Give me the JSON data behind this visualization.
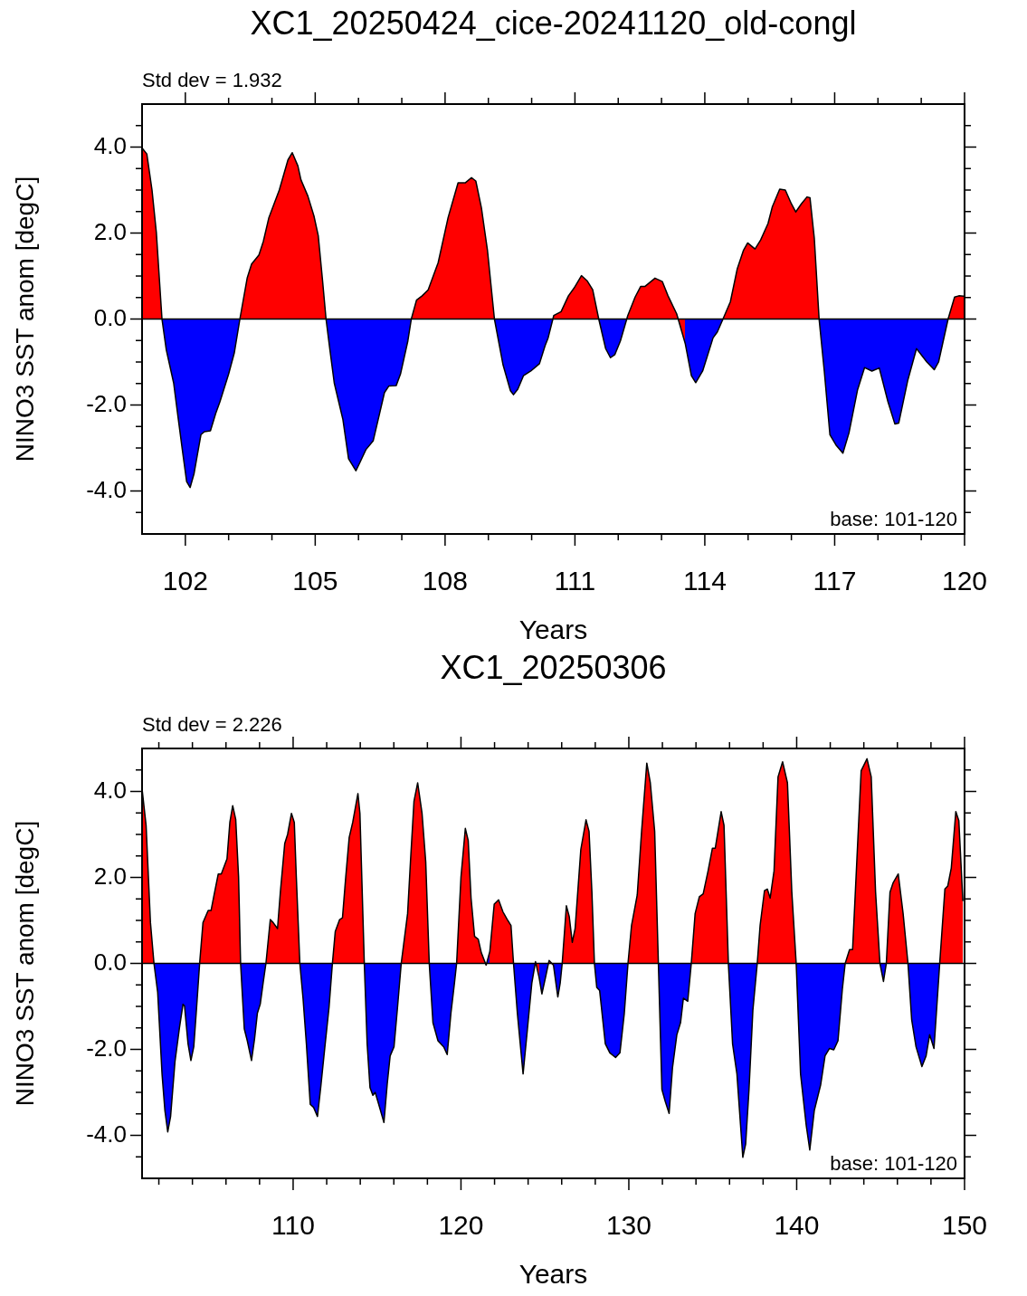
{
  "chart_data": [
    {
      "type": "area",
      "title": "XC1_20250424_cice-20241120_old-congl",
      "xlabel": "Years",
      "ylabel": "NINO3 SST anom [degC]",
      "annotations": [
        "Std dev = 1.932",
        "base: 101-120"
      ],
      "xlim": [
        101,
        120
      ],
      "ylim": [
        -5,
        5
      ],
      "xticks": [
        {
          "value": 102,
          "label": "102"
        },
        {
          "value": 103,
          "label": null
        },
        {
          "value": 104,
          "label": null
        },
        {
          "value": 105,
          "label": "105"
        },
        {
          "value": 106,
          "label": null
        },
        {
          "value": 107,
          "label": null
        },
        {
          "value": 108,
          "label": "108"
        },
        {
          "value": 109,
          "label": null
        },
        {
          "value": 110,
          "label": null
        },
        {
          "value": 111,
          "label": "111"
        },
        {
          "value": 112,
          "label": null
        },
        {
          "value": 113,
          "label": null
        },
        {
          "value": 114,
          "label": "114"
        },
        {
          "value": 115,
          "label": null
        },
        {
          "value": 116,
          "label": null
        },
        {
          "value": 117,
          "label": "117"
        },
        {
          "value": 118,
          "label": null
        },
        {
          "value": 119,
          "label": null
        },
        {
          "value": 120,
          "label": "120"
        }
      ],
      "yticks": [
        {
          "value": -4.5,
          "label": null
        },
        {
          "value": -4,
          "label": "-4.0"
        },
        {
          "value": -3.5,
          "label": null
        },
        {
          "value": -3,
          "label": null
        },
        {
          "value": -2.5,
          "label": null
        },
        {
          "value": -2,
          "label": "-2.0"
        },
        {
          "value": -1.5,
          "label": null
        },
        {
          "value": -1,
          "label": null
        },
        {
          "value": -0.5,
          "label": null
        },
        {
          "value": 0,
          "label": "0.0"
        },
        {
          "value": 0.5,
          "label": null
        },
        {
          "value": 1,
          "label": null
        },
        {
          "value": 1.5,
          "label": null
        },
        {
          "value": 2,
          "label": "2.0"
        },
        {
          "value": 2.5,
          "label": null
        },
        {
          "value": 3,
          "label": null
        },
        {
          "value": 3.5,
          "label": null
        },
        {
          "value": 4,
          "label": "4.0"
        },
        {
          "value": 4.5,
          "label": null
        }
      ],
      "ref_lines": [
        {
          "axis": "y",
          "value": 0,
          "color": "#000000"
        }
      ],
      "x": [
        101,
        101.11,
        101.23,
        101.33,
        101.46,
        101.56,
        101.73,
        101.83,
        101.93,
        102.03,
        102.11,
        102.2,
        102.36,
        102.44,
        102.58,
        102.7,
        102.8,
        103,
        103.13,
        103.26,
        103.43,
        103.53,
        103.7,
        103.8,
        103.93,
        104.17,
        104.37,
        104.47,
        104.6,
        104.67,
        104.83,
        104.97,
        105.07,
        105.17,
        105.25,
        105.34,
        105.44,
        105.64,
        105.77,
        105.94,
        106.04,
        106.17,
        106.34,
        106.6,
        106.7,
        106.87,
        106.97,
        107.14,
        107.22,
        107.34,
        107.47,
        107.61,
        107.84,
        108.07,
        108.3,
        108.47,
        108.61,
        108.71,
        108.84,
        108.98,
        109.14,
        109.34,
        109.51,
        109.58,
        109.68,
        109.81,
        109.98,
        110.18,
        110.31,
        110.38,
        110.51,
        110.68,
        110.85,
        110.98,
        111.15,
        111.28,
        111.41,
        111.55,
        111.71,
        111.82,
        111.92,
        112.05,
        112.22,
        112.39,
        112.52,
        112.62,
        112.85,
        113.02,
        113.15,
        113.35,
        113.55,
        113.69,
        113.79,
        113.95,
        114.19,
        114.29,
        114.42,
        114.59,
        114.75,
        114.89,
        114.99,
        115.16,
        115.29,
        115.46,
        115.56,
        115.73,
        115.86,
        116,
        116.1,
        116.23,
        116.36,
        116.43,
        116.53,
        116.64,
        116.76,
        116.89,
        117.03,
        117.19,
        117.33,
        117.53,
        117.69,
        117.86,
        118.03,
        118.23,
        118.39,
        118.48,
        118.69,
        118.89,
        119.13,
        119.3,
        119.4,
        119.62,
        119.77,
        119.87,
        119.98
      ],
      "series": [
        {
          "color": "#000000",
          "colors": [
            "#ff0000",
            "#ff0000",
            "#ff0000",
            "#ff0000",
            "#0000ff",
            "#0000ff",
            "#0000ff",
            "#0000ff",
            "#0000ff",
            "#0000ff",
            "#0000ff",
            "#0000ff",
            "#0000ff",
            "#0000ff",
            "#0000ff",
            "#0000ff",
            "#0000ff",
            "#0000ff",
            "#0000ff",
            "#ff0000",
            "#ff0000",
            "#ff0000",
            "#ff0000",
            "#ff0000",
            "#ff0000",
            "#ff0000",
            "#ff0000",
            "#ff0000",
            "#ff0000",
            "#ff0000",
            "#ff0000",
            "#ff0000",
            "#ff0000",
            "#ff0000",
            "#0000ff",
            "#0000ff",
            "#0000ff",
            "#0000ff",
            "#0000ff",
            "#0000ff",
            "#0000ff",
            "#0000ff",
            "#0000ff",
            "#0000ff",
            "#0000ff",
            "#0000ff",
            "#0000ff",
            "#0000ff",
            "#ff0000",
            "#ff0000",
            "#ff0000",
            "#ff0000",
            "#ff0000",
            "#ff0000",
            "#ff0000",
            "#ff0000",
            "#ff0000",
            "#ff0000",
            "#ff0000",
            "#ff0000",
            "#0000ff",
            "#0000ff",
            "#0000ff",
            "#0000ff",
            "#0000ff",
            "#0000ff",
            "#0000ff",
            "#0000ff",
            "#0000ff",
            "#0000ff",
            "#ff0000",
            "#ff0000",
            "#ff0000",
            "#ff0000",
            "#ff0000",
            "#ff0000",
            "#ff0000",
            "#0000ff",
            "#0000ff",
            "#0000ff",
            "#0000ff",
            "#0000ff",
            "#ff0000",
            "#ff0000",
            "#ff0000",
            "#ff0000",
            "#ff0000",
            "#ff0000",
            "#ff0000",
            "#ff0000",
            "#0000ff",
            "#0000ff",
            "#0000ff",
            "#0000ff",
            "#0000ff",
            "#0000ff",
            "#ff0000",
            "#ff0000",
            "#ff0000",
            "#ff0000",
            "#ff0000",
            "#ff0000",
            "#ff0000",
            "#ff0000",
            "#ff0000",
            "#ff0000",
            "#ff0000",
            "#ff0000",
            "#ff0000",
            "#ff0000",
            "#ff0000",
            "#ff0000",
            "#ff0000",
            "#0000ff",
            "#0000ff",
            "#0000ff",
            "#0000ff",
            "#0000ff",
            "#0000ff",
            "#0000ff",
            "#0000ff",
            "#0000ff",
            "#0000ff",
            "#0000ff",
            "#0000ff",
            "#0000ff",
            "#0000ff",
            "#0000ff",
            "#0000ff",
            "#0000ff",
            "#0000ff",
            "#ff0000",
            "#ff0000",
            "#ff0000",
            "#ff0000"
          ],
          "values": [
            3.98,
            3.84,
            3.0,
            2.01,
            0,
            -0.72,
            -1.49,
            -2.27,
            -3.04,
            -3.78,
            -3.92,
            -3.6,
            -2.69,
            -2.62,
            -2.6,
            -2.2,
            -1.92,
            -1.28,
            -0.79,
            0,
            0.96,
            1.28,
            1.49,
            1.8,
            2.36,
            3.0,
            3.7,
            3.87,
            3.56,
            3.24,
            2.86,
            2.4,
            1.94,
            0.89,
            0,
            -0.72,
            -1.49,
            -2.34,
            -3.25,
            -3.53,
            -3.32,
            -3.04,
            -2.83,
            -1.71,
            -1.56,
            -1.55,
            -1.28,
            -0.51,
            0,
            0.44,
            0.54,
            0.68,
            1.31,
            2.36,
            3.17,
            3.17,
            3.29,
            3.21,
            2.58,
            1.59,
            0,
            -1.07,
            -1.67,
            -1.76,
            -1.63,
            -1.32,
            -1.21,
            -1.04,
            -0.62,
            -0.44,
            0.08,
            0.17,
            0.54,
            0.72,
            1.01,
            0.89,
            0.68,
            0,
            -0.69,
            -0.9,
            -0.83,
            -0.51,
            0.08,
            0.51,
            0.76,
            0.76,
            0.95,
            0.87,
            0.54,
            0.12,
            -0.58,
            -1.32,
            -1.48,
            -1.21,
            -0.44,
            -0.3,
            0,
            0.4,
            1.17,
            1.59,
            1.77,
            1.63,
            1.84,
            2.22,
            2.61,
            3.02,
            3.0,
            2.68,
            2.49,
            2.68,
            2.84,
            2.82,
            1.87,
            0,
            -1.21,
            -2.69,
            -2.93,
            -3.12,
            -2.65,
            -1.64,
            -1.13,
            -1.21,
            -1.14,
            -1.92,
            -2.44,
            -2.42,
            -1.42,
            -0.69,
            -1.0,
            -1.18,
            -1.0,
            0,
            0.51,
            0.54,
            0.53
          ]
        }
      ]
    },
    {
      "type": "area",
      "title": "XC1_20250306",
      "xlabel": "Years",
      "ylabel": "NINO3 SST anom [degC]",
      "annotations": [
        "Std dev = 2.226",
        "base: 101-120"
      ],
      "xlim": [
        101,
        150
      ],
      "ylim": [
        -5,
        5
      ],
      "xticks": [
        {
          "value": 102,
          "label": null
        },
        {
          "value": 104,
          "label": null
        },
        {
          "value": 106,
          "label": null
        },
        {
          "value": 108,
          "label": null
        },
        {
          "value": 110,
          "label": "110"
        },
        {
          "value": 112,
          "label": null
        },
        {
          "value": 114,
          "label": null
        },
        {
          "value": 116,
          "label": null
        },
        {
          "value": 118,
          "label": null
        },
        {
          "value": 120,
          "label": "120"
        },
        {
          "value": 122,
          "label": null
        },
        {
          "value": 124,
          "label": null
        },
        {
          "value": 126,
          "label": null
        },
        {
          "value": 128,
          "label": null
        },
        {
          "value": 130,
          "label": "130"
        },
        {
          "value": 132,
          "label": null
        },
        {
          "value": 134,
          "label": null
        },
        {
          "value": 136,
          "label": null
        },
        {
          "value": 138,
          "label": null
        },
        {
          "value": 140,
          "label": "140"
        },
        {
          "value": 142,
          "label": null
        },
        {
          "value": 144,
          "label": null
        },
        {
          "value": 146,
          "label": null
        },
        {
          "value": 148,
          "label": null
        },
        {
          "value": 150,
          "label": "150"
        }
      ],
      "yticks": [
        {
          "value": -4.5,
          "label": null
        },
        {
          "value": -4,
          "label": "-4.0"
        },
        {
          "value": -3.5,
          "label": null
        },
        {
          "value": -3,
          "label": null
        },
        {
          "value": -2.5,
          "label": null
        },
        {
          "value": -2,
          "label": "-2.0"
        },
        {
          "value": -1.5,
          "label": null
        },
        {
          "value": -1,
          "label": null
        },
        {
          "value": -0.5,
          "label": null
        },
        {
          "value": 0,
          "label": "0.0"
        },
        {
          "value": 0.5,
          "label": null
        },
        {
          "value": 1,
          "label": null
        },
        {
          "value": 1.5,
          "label": null
        },
        {
          "value": 2,
          "label": "2.0"
        },
        {
          "value": 2.5,
          "label": null
        },
        {
          "value": 3,
          "label": null
        },
        {
          "value": 3.5,
          "label": null
        },
        {
          "value": 4,
          "label": "4.0"
        },
        {
          "value": 4.5,
          "label": null
        }
      ],
      "ref_lines": [
        {
          "axis": "y",
          "value": 0,
          "color": "#000000"
        }
      ],
      "x": [
        101,
        101.24,
        101.5,
        101.71,
        101.93,
        102.19,
        102.36,
        102.53,
        102.7,
        102.96,
        103.22,
        103.44,
        103.53,
        103.74,
        103.91,
        104.08,
        104.25,
        104.43,
        104.63,
        104.94,
        105.11,
        105.29,
        105.54,
        105.72,
        106.06,
        106.23,
        106.4,
        106.58,
        106.75,
        106.87,
        107.09,
        107.27,
        107.52,
        107.7,
        107.87,
        108.04,
        108.21,
        108.38,
        108.64,
        108.81,
        109.07,
        109.24,
        109.5,
        109.67,
        109.9,
        110.07,
        110.19,
        110.4,
        110.59,
        110.79,
        111.02,
        111.22,
        111.45,
        111.65,
        111.91,
        112.14,
        112.34,
        112.51,
        112.77,
        112.94,
        113.12,
        113.34,
        113.55,
        113.86,
        113.98,
        114.24,
        114.41,
        114.58,
        114.75,
        114.89,
        115.1,
        115.41,
        115.61,
        115.78,
        116.01,
        116.22,
        116.44,
        116.82,
        116.99,
        117.2,
        117.42,
        117.68,
        117.9,
        118.11,
        118.33,
        118.63,
        118.97,
        119.18,
        119.4,
        119.61,
        119.74,
        120,
        120.26,
        120.43,
        120.6,
        120.81,
        121.03,
        121.21,
        121.5,
        121.72,
        121.98,
        122.24,
        122.5,
        122.76,
        122.98,
        123.13,
        123.36,
        123.7,
        123.96,
        124.22,
        124.44,
        124.65,
        124.82,
        125.04,
        125.25,
        125.51,
        125.77,
        125.91,
        126.03,
        126.28,
        126.45,
        126.63,
        126.8,
        127.14,
        127.45,
        127.63,
        127.8,
        127.95,
        128.09,
        128.26,
        128.6,
        128.87,
        129.21,
        129.47,
        129.73,
        129.95,
        130.16,
        130.5,
        130.76,
        131.07,
        131.28,
        131.54,
        131.76,
        131.97,
        132.17,
        132.4,
        132.6,
        132.86,
        133.08,
        133.25,
        133.51,
        133.72,
        133.95,
        134.2,
        134.43,
        134.72,
        134.98,
        135.15,
        135.5,
        135.67,
        135.93,
        136.18,
        136.44,
        136.79,
        136.96,
        137.16,
        137.39,
        137.65,
        137.82,
        138.08,
        138.25,
        138.42,
        138.65,
        138.89,
        139.16,
        139.45,
        139.71,
        139.97,
        140.23,
        140.57,
        140.78,
        141.05,
        141.43,
        141.69,
        141.95,
        142.21,
        142.46,
        142.72,
        142.89,
        143.15,
        143.33,
        143.58,
        143.84,
        144.19,
        144.44,
        144.7,
        144.96,
        145.17,
        145.34,
        145.56,
        145.74,
        146.05,
        146.34,
        146.63,
        146.85,
        147.11,
        147.46,
        147.71,
        147.92,
        148.18,
        148.52,
        148.83,
        149,
        149.21,
        149.48,
        149.66,
        149.9
      ],
      "series": [
        {
          "color": "#000000",
          "colors": [
            "#ff0000",
            "#ff0000",
            "#ff0000",
            "#0000ff",
            "#0000ff",
            "#0000ff",
            "#0000ff",
            "#0000ff",
            "#0000ff",
            "#0000ff",
            "#0000ff",
            "#0000ff",
            "#0000ff",
            "#0000ff",
            "#0000ff",
            "#0000ff",
            "#0000ff",
            "#ff0000",
            "#ff0000",
            "#ff0000",
            "#ff0000",
            "#ff0000",
            "#ff0000",
            "#ff0000",
            "#ff0000",
            "#ff0000",
            "#ff0000",
            "#ff0000",
            "#ff0000",
            "#0000ff",
            "#0000ff",
            "#0000ff",
            "#0000ff",
            "#0000ff",
            "#0000ff",
            "#0000ff",
            "#0000ff",
            "#ff0000",
            "#ff0000",
            "#ff0000",
            "#ff0000",
            "#ff0000",
            "#ff0000",
            "#ff0000",
            "#ff0000",
            "#ff0000",
            "#ff0000",
            "#0000ff",
            "#0000ff",
            "#0000ff",
            "#0000ff",
            "#0000ff",
            "#0000ff",
            "#0000ff",
            "#0000ff",
            "#0000ff",
            "#ff0000",
            "#ff0000",
            "#ff0000",
            "#ff0000",
            "#ff0000",
            "#ff0000",
            "#ff0000",
            "#ff0000",
            "#ff0000",
            "#0000ff",
            "#0000ff",
            "#0000ff",
            "#0000ff",
            "#0000ff",
            "#0000ff",
            "#0000ff",
            "#0000ff",
            "#0000ff",
            "#0000ff",
            "#0000ff",
            "#ff0000",
            "#ff0000",
            "#ff0000",
            "#ff0000",
            "#ff0000",
            "#ff0000",
            "#ff0000",
            "#0000ff",
            "#0000ff",
            "#0000ff",
            "#0000ff",
            "#0000ff",
            "#0000ff",
            "#0000ff",
            "#ff0000",
            "#ff0000",
            "#ff0000",
            "#ff0000",
            "#ff0000",
            "#ff0000",
            "#ff0000",
            "#ff0000",
            "#0000ff",
            "#ff0000",
            "#ff0000",
            "#ff0000",
            "#ff0000",
            "#ff0000",
            "#ff0000",
            "#0000ff",
            "#0000ff",
            "#0000ff",
            "#0000ff",
            "#0000ff",
            "#ff0000",
            "#0000ff",
            "#0000ff",
            "#0000ff",
            "#ff0000",
            "#0000ff",
            "#0000ff",
            "#0000ff",
            "#ff0000",
            "#ff0000",
            "#ff0000",
            "#ff0000",
            "#ff0000",
            "#ff0000",
            "#ff0000",
            "#ff0000",
            "#ff0000",
            "#0000ff",
            "#0000ff",
            "#0000ff",
            "#0000ff",
            "#0000ff",
            "#0000ff",
            "#0000ff",
            "#0000ff",
            "#ff0000",
            "#ff0000",
            "#ff0000",
            "#ff0000",
            "#ff0000",
            "#ff0000",
            "#ff0000",
            "#0000ff",
            "#0000ff",
            "#0000ff",
            "#0000ff",
            "#0000ff",
            "#0000ff",
            "#0000ff",
            "#0000ff",
            "#0000ff",
            "#ff0000",
            "#ff0000",
            "#ff0000",
            "#ff0000",
            "#ff0000",
            "#ff0000",
            "#ff0000",
            "#ff0000",
            "#ff0000",
            "#0000ff",
            "#0000ff",
            "#0000ff",
            "#0000ff",
            "#0000ff",
            "#0000ff",
            "#0000ff",
            "#ff0000",
            "#ff0000",
            "#ff0000",
            "#ff0000",
            "#ff0000",
            "#ff0000",
            "#ff0000",
            "#ff0000",
            "#ff0000",
            "#ff0000",
            "#0000ff",
            "#0000ff",
            "#0000ff",
            "#0000ff",
            "#0000ff",
            "#0000ff",
            "#0000ff",
            "#0000ff",
            "#0000ff",
            "#0000ff",
            "#0000ff",
            "#ff0000",
            "#ff0000",
            "#ff0000",
            "#ff0000",
            "#ff0000",
            "#ff0000",
            "#ff0000",
            "#ff0000",
            "#0000ff",
            "#0000ff",
            "#ff0000",
            "#ff0000",
            "#ff0000",
            "#ff0000",
            "#ff0000",
            "#0000ff",
            "#0000ff",
            "#0000ff",
            "#0000ff",
            "#0000ff",
            "#0000ff",
            "#0000ff",
            "#ff0000",
            "#ff0000",
            "#ff0000",
            "#ff0000",
            "#ff0000",
            "#ff0000",
            "#ff0000"
          ],
          "values": [
            4.06,
            3.21,
            0.95,
            0,
            -0.67,
            -2.57,
            -3.42,
            -3.92,
            -3.56,
            -2.29,
            -1.52,
            -0.95,
            -0.99,
            -1.87,
            -2.26,
            -1.94,
            -1.02,
            0,
            0.95,
            1.23,
            1.23,
            1.59,
            2.08,
            2.08,
            2.43,
            3.28,
            3.67,
            3.35,
            2.01,
            0,
            -1.52,
            -1.8,
            -2.26,
            -1.76,
            -1.16,
            -0.95,
            -0.46,
            0,
            1.02,
            0.95,
            0.81,
            1.66,
            2.79,
            3.0,
            3.49,
            3.28,
            2.01,
            0,
            -0.81,
            -1.87,
            -3.28,
            -3.35,
            -3.56,
            -2.86,
            -1.87,
            -1.02,
            0,
            0.74,
            1.02,
            1.06,
            1.94,
            2.93,
            3.28,
            3.95,
            3.49,
            0,
            -1.87,
            -2.89,
            -3.07,
            -3.0,
            -3.28,
            -3.7,
            -2.79,
            -2.15,
            -1.94,
            -1.02,
            0,
            1.16,
            2.36,
            3.77,
            4.2,
            3.49,
            2.36,
            0,
            -1.38,
            -1.8,
            -1.94,
            -2.12,
            -1.16,
            -0.46,
            0,
            2.01,
            3.14,
            2.86,
            1.52,
            0.63,
            0.56,
            0.25,
            -0.04,
            0.28,
            1.38,
            1.48,
            1.2,
            1.02,
            0.88,
            0,
            -1.16,
            -2.57,
            -1.52,
            -0.46,
            0.04,
            -0.32,
            -0.71,
            -0.32,
            0.07,
            -0.04,
            -0.78,
            -0.46,
            0,
            1.34,
            1.09,
            0.49,
            0.81,
            2.65,
            3.34,
            3.07,
            1.66,
            0,
            -0.56,
            -0.63,
            -1.87,
            -2.08,
            -2.19,
            -2.08,
            -1.16,
            0,
            0.88,
            1.59,
            3.07,
            4.66,
            4.2,
            3.07,
            0,
            -2.93,
            -3.21,
            -3.49,
            -2.43,
            -1.66,
            -1.38,
            -0.81,
            -0.88,
            0,
            1.16,
            1.55,
            1.62,
            2.15,
            2.68,
            2.68,
            3.53,
            3.21,
            0,
            -1.87,
            -2.57,
            -4.51,
            -4.2,
            -2.93,
            -1.09,
            0,
            0.88,
            1.69,
            1.73,
            1.52,
            2.15,
            4.34,
            4.69,
            4.2,
            1.66,
            0,
            -2.57,
            -3.77,
            -4.34,
            -3.42,
            -2.82,
            -2.15,
            -1.98,
            -2.01,
            -1.8,
            -0.6,
            0,
            0.32,
            0.32,
            2.36,
            4.48,
            4.76,
            4.34,
            1.66,
            0,
            -0.42,
            0,
            1.66,
            1.87,
            2.08,
            1.16,
            0,
            -1.31,
            -1.94,
            -2.4,
            -2.15,
            -1.66,
            -1.98,
            0,
            1.73,
            1.8,
            2.22,
            3.53,
            3.32,
            1.45
          ]
        }
      ]
    }
  ]
}
